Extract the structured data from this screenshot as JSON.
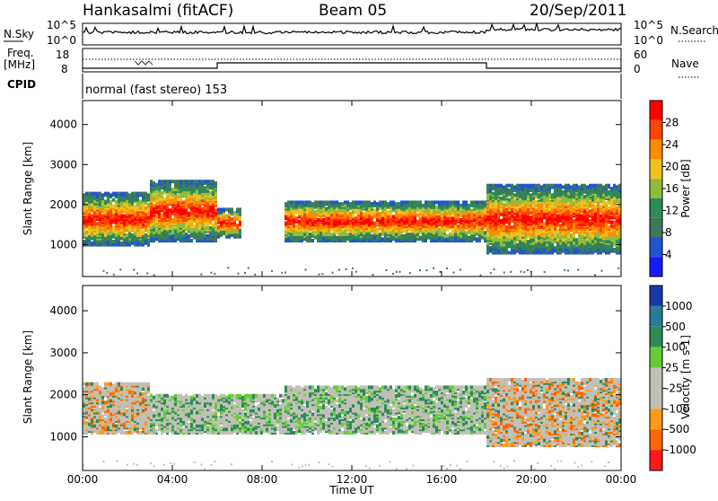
{
  "header": {
    "station": "Hankasalmi (fitACF)",
    "beam": "Beam 05",
    "date": "20/Sep/2011"
  },
  "panels": {
    "nsky": {
      "label": "N.Sky",
      "tick_top": "10^5",
      "tick_bottom": "10^0",
      "right_top": "10^5",
      "right_bottom": "10^0",
      "right_label": "N.Search"
    },
    "freq": {
      "label_line1": "Freq.",
      "label_line2": "[MHz]",
      "tick_top": "18",
      "tick_bottom": "8",
      "right_top": "60",
      "right_bottom": "0",
      "right_label": "Nave"
    },
    "cpid": {
      "label": "CPID",
      "mode_text": "normal (fast stereo) 153"
    }
  },
  "colors": {
    "power_scale": [
      "#1a1aff",
      "#2255cc",
      "#3c7a5a",
      "#2e8b57",
      "#8fbc3c",
      "#f0c020",
      "#ff8c00",
      "#ff4500",
      "#ff0000"
    ],
    "velocity_scale": [
      "#ff1a1a",
      "#ff6600",
      "#ff9a1a",
      "#c0c0b8",
      "#c0c0b8",
      "#66cc33",
      "#2e8b57",
      "#2a7a9a",
      "#1a3aaa"
    ],
    "ground_scatter": "#bdbdb6"
  },
  "chart_data": [
    {
      "type": "heatmap",
      "title": "",
      "xlabel": "Time UT",
      "ylabel": "Slant Range [km]",
      "xticks": [
        "00:00",
        "04:00",
        "08:00",
        "12:00",
        "16:00",
        "20:00",
        "00:00"
      ],
      "yticks": [
        "1000",
        "2000",
        "3000",
        "4000"
      ],
      "ylim": [
        200,
        4600
      ],
      "xlim_hours": [
        0,
        24
      ],
      "colorbar": {
        "label": "Power [dB]",
        "ticks": [
          "4",
          "8",
          "12",
          "16",
          "20",
          "24",
          "28"
        ]
      },
      "bands": [
        {
          "start_h": 0.0,
          "end_h": 3.0,
          "low_km": 1000,
          "high_km": 2300,
          "peak_db": 28
        },
        {
          "start_h": 3.0,
          "end_h": 6.0,
          "low_km": 1100,
          "high_km": 2600,
          "peak_db": 18
        },
        {
          "start_h": 6.0,
          "end_h": 7.0,
          "low_km": 1200,
          "high_km": 1900,
          "peak_db": 20
        },
        {
          "start_h": 9.0,
          "end_h": 18.0,
          "low_km": 1100,
          "high_km": 2100,
          "peak_db": 26
        },
        {
          "start_h": 18.0,
          "end_h": 24.0,
          "low_km": 800,
          "high_km": 2500,
          "peak_db": 30
        }
      ]
    },
    {
      "type": "heatmap",
      "title": "",
      "xlabel": "Time UT",
      "ylabel": "Slant Range [km]",
      "xticks": [
        "00:00",
        "04:00",
        "08:00",
        "12:00",
        "16:00",
        "20:00",
        "00:00"
      ],
      "yticks": [
        "1000",
        "2000",
        "3000",
        "4000"
      ],
      "ylim": [
        200,
        4600
      ],
      "xlim_hours": [
        0,
        24
      ],
      "colorbar": {
        "label": "Velocity [m s-1]",
        "ticks": [
          "-1000",
          "-500",
          "-100",
          "-25",
          "25",
          "100",
          "500",
          "1000"
        ]
      },
      "bands": [
        {
          "start_h": 0.0,
          "end_h": 3.0,
          "low_km": 1100,
          "high_km": 2300,
          "velocity": -300
        },
        {
          "start_h": 3.0,
          "end_h": 9.0,
          "low_km": 1100,
          "high_km": 2000,
          "velocity": 0
        },
        {
          "start_h": 9.0,
          "end_h": 18.0,
          "low_km": 1100,
          "high_km": 2200,
          "velocity": 0
        },
        {
          "start_h": 18.0,
          "end_h": 24.0,
          "low_km": 800,
          "high_km": 2400,
          "velocity": -200
        }
      ]
    }
  ],
  "footer": {
    "xaxis_title": "Time UT"
  }
}
